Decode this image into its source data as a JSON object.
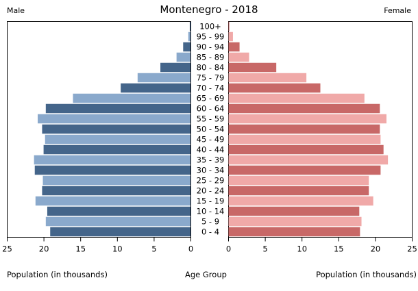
{
  "chart_data": {
    "type": "bar",
    "title": "Montenegro - 2018",
    "male_label": "Male",
    "female_label": "Female",
    "xlabel_left": "Population (in thousands)",
    "xlabel_center": "Age Group",
    "xlabel_right": "Population (in thousands)",
    "x_ticks": [
      25,
      20,
      15,
      10,
      5,
      0
    ],
    "xlim": [
      0,
      25
    ],
    "categories": [
      "100+",
      "95 - 99",
      "90 - 94",
      "85 - 89",
      "80 - 84",
      "75 - 79",
      "70 - 74",
      "65 - 69",
      "60 - 64",
      "55 - 59",
      "50 - 54",
      "45 - 49",
      "40 - 44",
      "35 - 39",
      "30 - 34",
      "25 - 29",
      "20 - 24",
      "15 - 19",
      "10 - 14",
      "5 - 9",
      "0 - 4"
    ],
    "series": [
      {
        "name": "Male",
        "values": [
          0.1,
          0.3,
          1.0,
          1.9,
          4.1,
          7.2,
          9.5,
          16.0,
          19.7,
          20.8,
          20.2,
          19.8,
          20.0,
          21.3,
          21.2,
          20.1,
          20.2,
          21.1,
          19.5,
          19.7,
          19.1
        ]
      },
      {
        "name": "Female",
        "values": [
          0.1,
          0.6,
          1.5,
          2.8,
          6.5,
          10.6,
          12.5,
          18.5,
          20.6,
          21.5,
          20.6,
          20.7,
          21.1,
          21.7,
          20.7,
          19.1,
          19.1,
          19.7,
          17.8,
          18.1,
          17.9
        ]
      }
    ],
    "colors": {
      "male_dark": "#44658a",
      "male_light": "#8aa9cc",
      "female_dark": "#c86867",
      "female_light": "#f0a9a8"
    },
    "grid": false
  }
}
